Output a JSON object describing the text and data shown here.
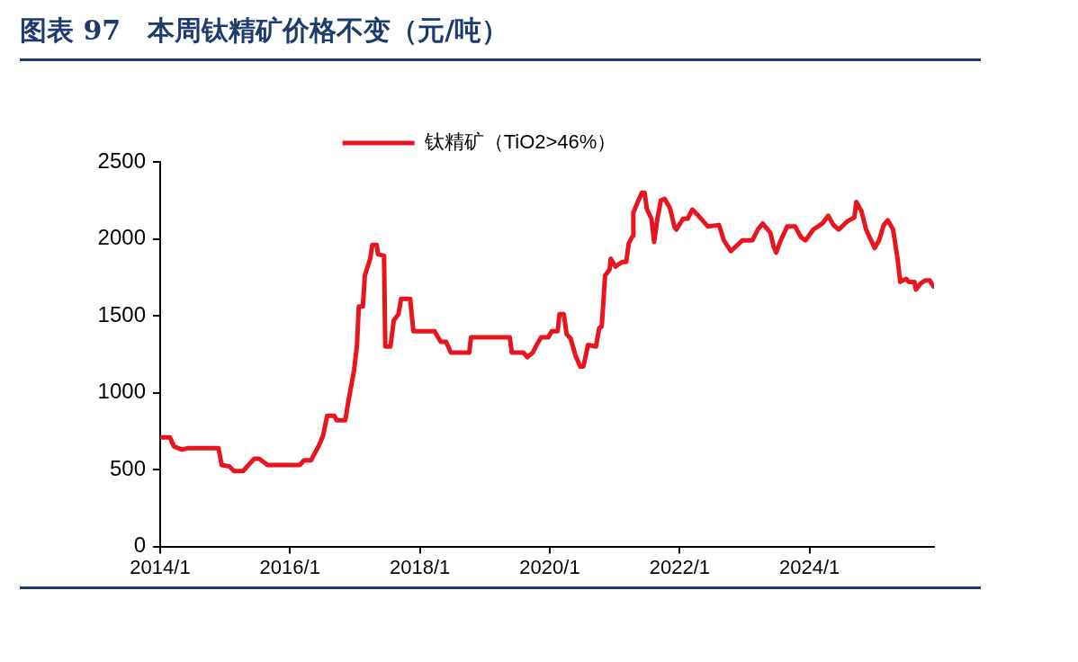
{
  "chart_data": {
    "type": "line",
    "title": "图表 97　本周钛精矿价格不变（元/吨）",
    "legend": "top",
    "grid": false,
    "marker": "none",
    "xlim": [
      "2014-01",
      "2025-12"
    ],
    "xticks": [
      {
        "value": "2014-01",
        "label": "2014/1"
      },
      {
        "value": "2016-01",
        "label": "2016/1"
      },
      {
        "value": "2018-01",
        "label": "2018/1"
      },
      {
        "value": "2020-01",
        "label": "2020/1"
      },
      {
        "value": "2022-01",
        "label": "2022/1"
      },
      {
        "value": "2024-01",
        "label": "2024/1"
      }
    ],
    "ylim": [
      0,
      2500
    ],
    "yticks": [
      0,
      500,
      1000,
      1500,
      2000,
      2500
    ],
    "x": [
      "2014-01-03",
      "2014-02-24",
      "2014-03-20",
      "2014-05-03",
      "2014-06-09",
      "2014-08-25",
      "2014-11-25",
      "2014-12-13",
      "2015-01-26",
      "2015-02-21",
      "2015-04-12",
      "2015-06-13",
      "2015-07-12",
      "2015-08-28",
      "2016-01-03",
      "2016-02-25",
      "2016-03-20",
      "2016-04-28",
      "2016-06-09",
      "2016-07-05",
      "2016-07-28",
      "2016-09-06",
      "2016-09-20",
      "2016-11-07",
      "2016-11-21",
      "2016-12-27",
      "2017-01-12",
      "2017-01-22",
      "2017-02-14",
      "2017-02-25",
      "2017-03-27",
      "2017-04-08",
      "2017-05-03",
      "2017-05-10",
      "2017-06-13",
      "2017-06-20",
      "2017-07-19",
      "2017-08-07",
      "2017-09-02",
      "2017-09-17",
      "2017-11-07",
      "2017-11-25",
      "2018-03-24",
      "2018-04-28",
      "2018-05-28",
      "2018-06-24",
      "2018-10-05",
      "2018-10-15",
      "2019-05-21",
      "2019-06-02",
      "2019-08-07",
      "2019-08-28",
      "2019-09-27",
      "2019-10-19",
      "2019-11-14",
      "2019-12-24",
      "2020-01-12",
      "2020-02-14",
      "2020-02-25",
      "2020-03-20",
      "2020-04-05",
      "2020-04-28",
      "2020-05-25",
      "2020-06-20",
      "2020-07-08",
      "2020-08-03",
      "2020-09-17",
      "2020-10-05",
      "2020-10-19",
      "2020-10-28",
      "2020-11-07",
      "2020-12-02",
      "2020-12-09",
      "2021-01-05",
      "2021-02-11",
      "2021-03-06",
      "2021-03-20",
      "2021-04-12",
      "2021-04-15",
      "2021-05-10",
      "2021-06-02",
      "2021-06-17",
      "2021-07-01",
      "2021-07-26",
      "2021-08-10",
      "2021-08-28",
      "2021-09-17",
      "2021-10-08",
      "2021-11-07",
      "2021-12-02",
      "2021-12-13",
      "2022-01-19",
      "2022-02-14",
      "2022-03-13",
      "2022-04-08",
      "2022-06-09",
      "2022-08-10",
      "2022-09-06",
      "2022-10-15",
      "2022-11-21",
      "2022-12-20",
      "2023-02-14",
      "2023-03-16",
      "2023-04-12",
      "2023-05-25",
      "2023-06-13",
      "2023-06-27",
      "2023-07-23",
      "2023-08-28",
      "2023-10-12",
      "2023-11-14",
      "2023-12-09",
      "2024-01-22",
      "2024-03-13",
      "2024-04-15",
      "2024-05-14",
      "2024-06-13",
      "2024-07-28",
      "2024-09-09",
      "2024-09-20",
      "2024-10-19",
      "2024-11-14",
      "2025-01-01",
      "2025-01-26",
      "2025-02-21",
      "2025-03-16",
      "2025-04-15",
      "2025-05-10",
      "2025-05-25",
      "2025-06-27",
      "2025-07-12",
      "2025-08-13",
      "2025-08-21",
      "2025-09-17",
      "2025-10-12",
      "2025-11-07",
      "2025-11-28"
    ],
    "series": [
      {
        "name": "钛精矿（TiO2>46%）",
        "color": "#e8141e",
        "values": [
          710,
          710,
          650,
          630,
          640,
          640,
          640,
          530,
          520,
          490,
          490,
          570,
          570,
          530,
          530,
          530,
          560,
          560,
          650,
          720,
          850,
          850,
          820,
          820,
          920,
          1150,
          1310,
          1560,
          1560,
          1760,
          1870,
          1960,
          1960,
          1900,
          1890,
          1300,
          1300,
          1470,
          1510,
          1610,
          1610,
          1400,
          1400,
          1330,
          1330,
          1260,
          1260,
          1360,
          1360,
          1260,
          1260,
          1230,
          1260,
          1310,
          1360,
          1360,
          1400,
          1400,
          1510,
          1510,
          1380,
          1350,
          1240,
          1170,
          1170,
          1310,
          1300,
          1420,
          1430,
          1580,
          1760,
          1800,
          1870,
          1820,
          1850,
          1850,
          1970,
          2020,
          2170,
          2240,
          2300,
          2300,
          2190,
          2130,
          1980,
          2130,
          2250,
          2260,
          2200,
          2080,
          2060,
          2130,
          2130,
          2190,
          2160,
          2080,
          2090,
          1990,
          1920,
          1960,
          1990,
          1990,
          2060,
          2100,
          2040,
          1950,
          1910,
          1990,
          2080,
          2080,
          2010,
          1990,
          2060,
          2100,
          2150,
          2090,
          2060,
          2110,
          2140,
          2240,
          2180,
          2060,
          1940,
          1990,
          2090,
          2120,
          2060,
          1870,
          1720,
          1740,
          1720,
          1720,
          1670,
          1710,
          1730,
          1730,
          1690
        ]
      }
    ]
  }
}
